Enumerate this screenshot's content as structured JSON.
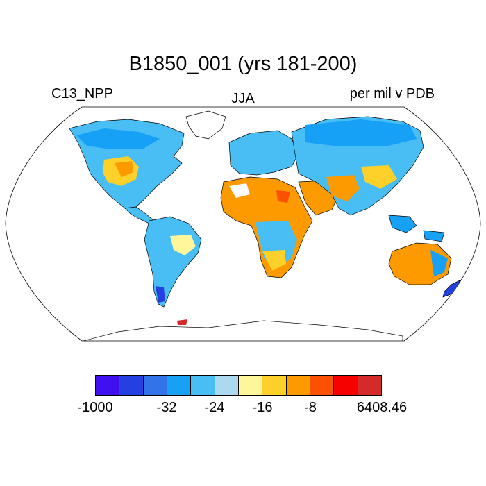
{
  "title": "B1850_001 (yrs 181-200)",
  "left_label": "C13_NPP",
  "center_label": "JJA",
  "right_label": "per mil v PDB",
  "colorbar": {
    "colors": [
      "#4110ee",
      "#2440e0",
      "#3273ea",
      "#16a0f6",
      "#48bef5",
      "#acd9f0",
      "#fff59a",
      "#fdd02a",
      "#fd9a00",
      "#fd5102",
      "#f60100",
      "#d42a2a"
    ],
    "labels": [
      "-1000",
      "-32",
      "-24",
      "-16",
      "-8",
      "6408.46"
    ]
  },
  "legend_colors": {
    "ocean": "#ffffff",
    "no_data": "#ffffff",
    "coastline": "#000000"
  }
}
